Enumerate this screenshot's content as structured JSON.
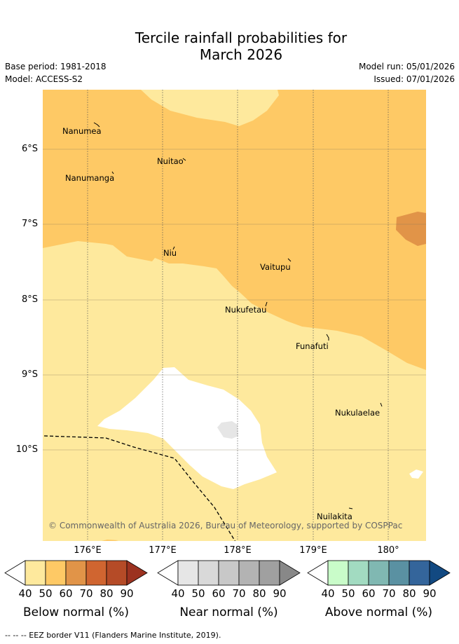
{
  "title_line1": "Tercile rainfall probabilities for",
  "title_line2": "March 2026",
  "base_period": "Base period: 1981-2018",
  "model": "Model: ACCESS-S2",
  "model_run": "Model run: 05/01/2026",
  "issued": "Issued: 07/01/2026",
  "lat_labels": [
    "6°S",
    "7°S",
    "8°S",
    "9°S",
    "10°S"
  ],
  "lon_labels": [
    "176°E",
    "177°E",
    "178°E",
    "179°E",
    "180°"
  ],
  "islands": {
    "nanumea": "Nanumea",
    "nuitao": "Nuitao",
    "nanumanga": "Nanumanga",
    "niu": "Niu",
    "vaitupu": "Vaitupu",
    "nukufetau": "Nukufetau",
    "funafuti": "Funafuti",
    "nukulaelae": "Nukulaelae",
    "nuilakita": "Nuilakita"
  },
  "copyright": "© Commonwealth of Australia 2026, Bureau of Meteorology, supported by COSPPac",
  "colorbars": [
    {
      "label": "Below normal (%)",
      "ticks": [
        "40",
        "50",
        "60",
        "70",
        "80",
        "90"
      ],
      "colors": [
        "#fee99d",
        "#fec965",
        "#e19448",
        "#d06530",
        "#b54b27",
        "#9c3220"
      ]
    },
    {
      "label": "Near normal (%)",
      "ticks": [
        "40",
        "50",
        "60",
        "70",
        "80",
        "90"
      ],
      "colors": [
        "#e6e6e6",
        "#d9d9d9",
        "#c8c8c8",
        "#b3b3b3",
        "#a0a0a0",
        "#888888"
      ]
    },
    {
      "label": "Above normal (%)",
      "ticks": [
        "40",
        "50",
        "60",
        "70",
        "80",
        "90"
      ],
      "colors": [
        "#c9fcc9",
        "#a2dbc1",
        "#80b8b2",
        "#5a91a2",
        "#34659b",
        "#124981"
      ]
    }
  ],
  "footer": "--  --  -- EEZ border V11 (Flanders Marine Institute, 2019)."
}
